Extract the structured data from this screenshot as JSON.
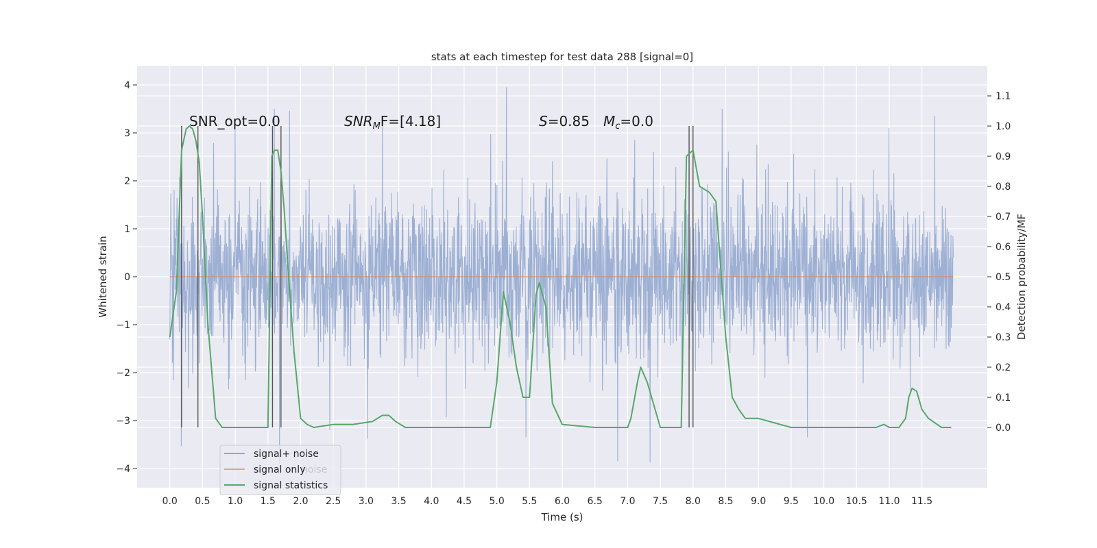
{
  "chart_data": {
    "type": "line",
    "title": "stats at each timestep for test data 288 [signal=0]",
    "xlabel": "Time (s)",
    "ylabel_left": "Whitened strain",
    "ylabel_right": "Detection probability/MF",
    "xlim": [
      -0.5,
      12.5
    ],
    "ylim_left": [
      -4.4,
      4.4
    ],
    "ylim_right": [
      -0.2,
      1.2
    ],
    "x_ticks": [
      "0.0",
      "0.5",
      "1.0",
      "1.5",
      "2.0",
      "2.5",
      "3.0",
      "3.5",
      "4.0",
      "4.5",
      "5.0",
      "5.5",
      "6.0",
      "6.5",
      "7.0",
      "7.5",
      "8.0",
      "8.5",
      "9.0",
      "9.5",
      "10.0",
      "10.5",
      "11.0",
      "11.5"
    ],
    "y_ticks_left": [
      "4",
      "3",
      "2",
      "1",
      "0",
      "−1",
      "−2",
      "−3",
      "−4"
    ],
    "y_ticks_right": [
      "1.1",
      "1.0",
      "0.9",
      "0.8",
      "0.7",
      "0.6",
      "0.5",
      "0.4",
      "0.3",
      "0.2",
      "0.1",
      "0.0"
    ],
    "grid": true,
    "legend_placement": "lower-left",
    "series": [
      {
        "name": "signal+ noise",
        "color": "#8fa6cf",
        "description_range": [
          -1.4,
          1.4
        ],
        "peaks": [
          {
            "x": 1.0,
            "y": 3.2
          },
          {
            "x": 1.6,
            "y": 3.5
          },
          {
            "x": 3.25,
            "y": 3.3
          },
          {
            "x": 5.15,
            "y": 3.95
          },
          {
            "x": 8.45,
            "y": 3.5
          },
          {
            "x": 11.0,
            "y": 3.1
          },
          {
            "x": 1.68,
            "y": -3.9
          },
          {
            "x": 2.45,
            "y": -3.2
          },
          {
            "x": 6.85,
            "y": -3.85
          },
          {
            "x": 9.75,
            "y": -3.35
          },
          {
            "x": 5.45,
            "y": -3.35
          }
        ]
      },
      {
        "name": "signal only",
        "color": "#dd8452",
        "value": 0
      },
      {
        "name": "signal statistics",
        "color": "#55a868",
        "x": [
          0.0,
          0.1,
          0.18,
          0.25,
          0.3,
          0.35,
          0.4,
          0.45,
          0.5,
          0.58,
          0.7,
          0.8,
          1.0,
          1.5,
          1.56,
          1.6,
          1.65,
          1.7,
          1.75,
          1.8,
          1.9,
          2.0,
          2.1,
          2.2,
          2.5,
          2.8,
          3.1,
          3.25,
          3.35,
          3.45,
          3.6,
          4.0,
          4.5,
          4.9,
          5.0,
          5.1,
          5.2,
          5.3,
          5.4,
          5.5,
          5.6,
          5.65,
          5.75,
          5.85,
          6.0,
          6.5,
          7.0,
          7.05,
          7.15,
          7.2,
          7.3,
          7.5,
          7.82,
          7.9,
          8.0,
          8.1,
          8.25,
          8.35,
          8.4,
          8.5,
          8.6,
          8.7,
          8.8,
          9.0,
          9.5,
          10.0,
          10.5,
          10.8,
          10.92,
          11.0,
          11.15,
          11.25,
          11.3,
          11.35,
          11.42,
          11.5,
          11.6,
          11.8,
          11.95
        ],
        "values": [
          0.3,
          0.45,
          0.92,
          0.99,
          1.0,
          0.99,
          0.95,
          0.88,
          0.7,
          0.35,
          0.03,
          0.0,
          0.0,
          0.0,
          0.9,
          0.92,
          0.92,
          0.85,
          0.72,
          0.55,
          0.25,
          0.03,
          0.01,
          0.0,
          0.01,
          0.01,
          0.02,
          0.04,
          0.04,
          0.02,
          0.0,
          0.0,
          0.0,
          0.0,
          0.15,
          0.45,
          0.35,
          0.2,
          0.1,
          0.1,
          0.44,
          0.48,
          0.4,
          0.08,
          0.01,
          0.0,
          0.0,
          0.03,
          0.15,
          0.2,
          0.15,
          0.0,
          0.0,
          0.9,
          0.92,
          0.8,
          0.78,
          0.75,
          0.6,
          0.3,
          0.1,
          0.06,
          0.03,
          0.03,
          0.0,
          0.0,
          0.0,
          0.0,
          0.01,
          0.0,
          0.0,
          0.03,
          0.1,
          0.13,
          0.12,
          0.06,
          0.03,
          0.0,
          0.0
        ]
      }
    ],
    "vertical_markers": [
      0.18,
      0.43,
      1.57,
      1.7,
      7.94,
      8.0
    ],
    "annotations": [
      {
        "id": "snr-opt",
        "text": "SNR_opt=0.0"
      },
      {
        "id": "snr-mf",
        "text_main": "SNR",
        "text_sub": "M",
        "text_rest": "F=[4.18]"
      },
      {
        "id": "s-val",
        "text_main": "S",
        "text_rest": "=0.85"
      },
      {
        "id": "mc-val",
        "text_main": "M",
        "text_sub": "c",
        "text_rest": "=0.0"
      }
    ],
    "legend_underlay_text": "noise"
  }
}
